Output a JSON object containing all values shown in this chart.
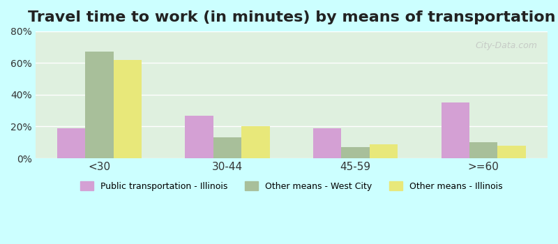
{
  "title": "Travel time to work (in minutes) by means of transportation",
  "categories": [
    "<30",
    "30-44",
    "45-59",
    ">=60"
  ],
  "series": [
    {
      "name": "Public transportation - Illinois",
      "values": [
        19,
        27,
        19,
        35
      ],
      "color": "#d4a0d4"
    },
    {
      "name": "Other means - West City",
      "values": [
        67,
        13,
        7,
        10
      ],
      "color": "#a8bf9a"
    },
    {
      "name": "Other means - Illinois",
      "values": [
        62,
        20,
        9,
        8
      ],
      "color": "#e8e87a"
    }
  ],
  "ylim": [
    0,
    80
  ],
  "yticks": [
    0,
    20,
    40,
    60,
    80
  ],
  "ytick_labels": [
    "0%",
    "20%",
    "40%",
    "60%",
    "80%"
  ],
  "background_color": "#ccffff",
  "plot_bg_color": "#dff0df",
  "title_fontsize": 16,
  "bar_width": 0.22,
  "watermark": "City-Data.com"
}
